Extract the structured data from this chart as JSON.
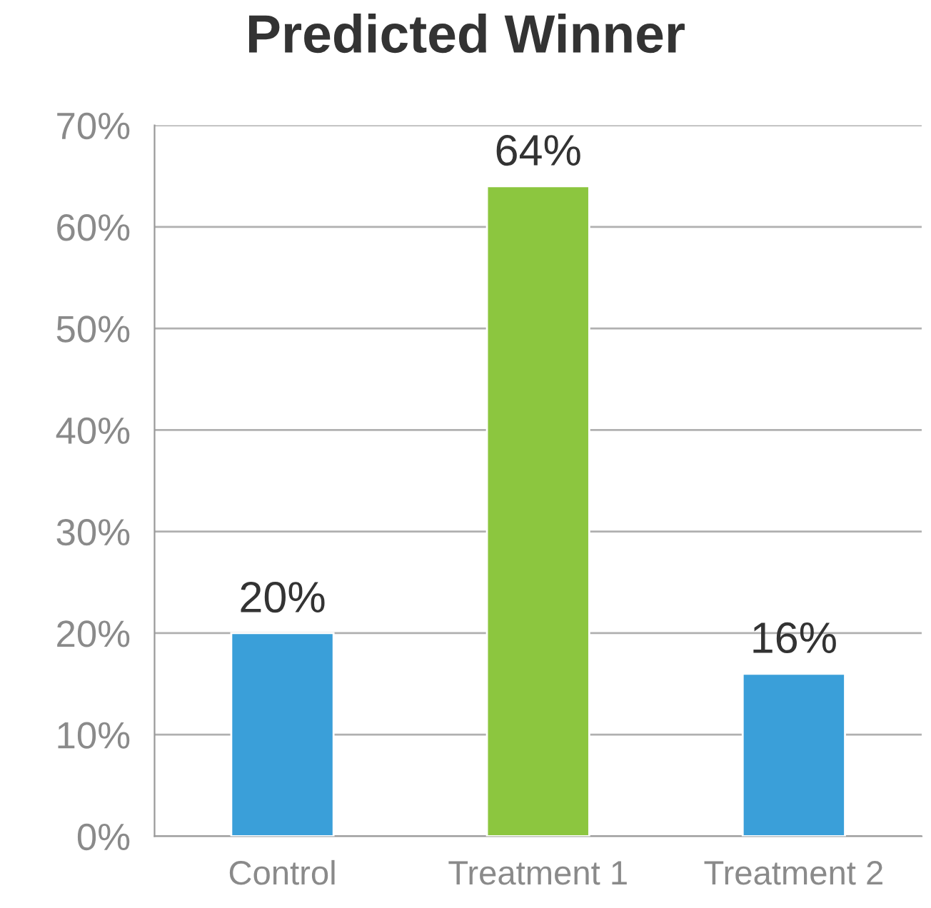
{
  "chart_data": {
    "type": "bar",
    "title": "Predicted Winner",
    "categories": [
      "Control",
      "Treatment 1",
      "Treatment 2"
    ],
    "values": [
      20,
      64,
      16
    ],
    "colors": [
      "#3a9fd9",
      "#8cc63f",
      "#3a9fd9"
    ],
    "value_labels": [
      "20%",
      "64%",
      "16%"
    ],
    "ylim": [
      0,
      70
    ],
    "yticks": [
      {
        "value": 0,
        "label": "0%"
      },
      {
        "value": 10,
        "label": "10%"
      },
      {
        "value": 20,
        "label": "20%"
      },
      {
        "value": 30,
        "label": "30%"
      },
      {
        "value": 40,
        "label": "40%"
      },
      {
        "value": 50,
        "label": "50%"
      },
      {
        "value": 60,
        "label": "60%"
      },
      {
        "value": 70,
        "label": "70%"
      }
    ],
    "grid": "y",
    "legend": false
  }
}
